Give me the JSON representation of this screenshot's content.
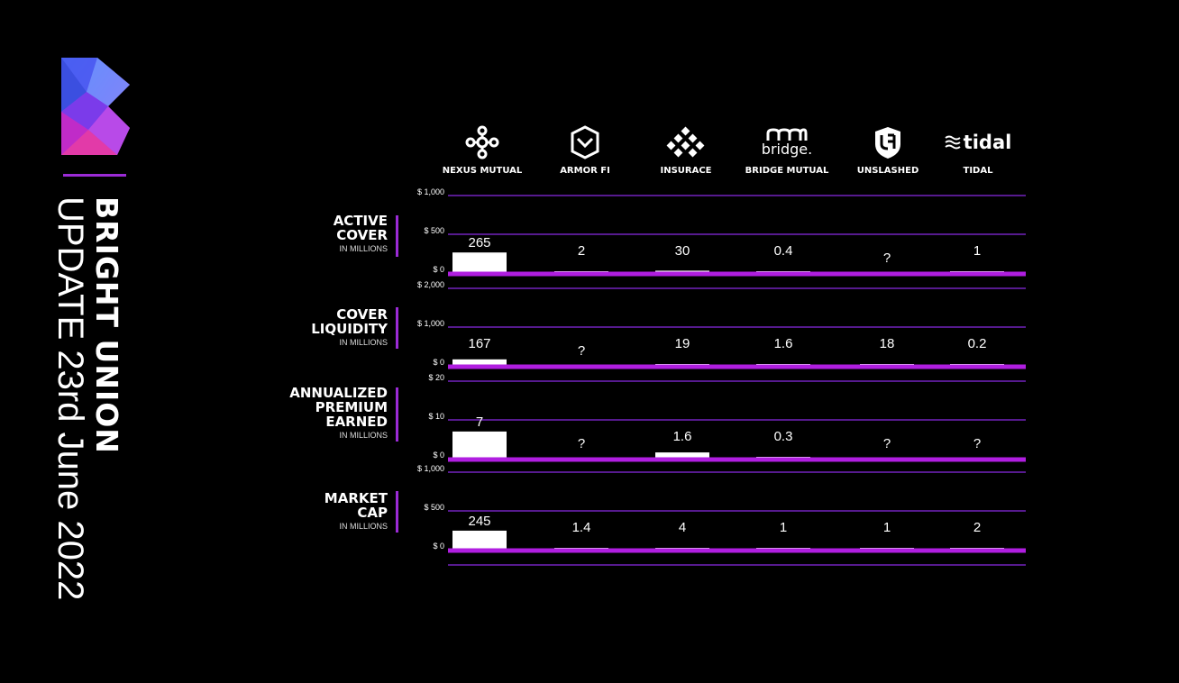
{
  "brand": {
    "name": "BRIGHT UNION",
    "subtitle": "UPDATE 23rd June 2022",
    "logo_icon": "bright-union-logo",
    "colors": {
      "accent": "#9b2bd6",
      "gridline": "#8a2be2",
      "baseline": "#b01ee0",
      "bar": "#ffffff",
      "background": "#000000"
    }
  },
  "companies": [
    {
      "name": "NEXUS MUTUAL",
      "icon": "nexus-mutual-icon"
    },
    {
      "name": "ARMOR FI",
      "icon": "armor-fi-icon"
    },
    {
      "name": "INSURACE",
      "icon": "insurace-icon"
    },
    {
      "name": "BRIDGE MUTUAL",
      "icon": "bridge-mutual-icon",
      "logo_text": "bridge."
    },
    {
      "name": "UNSLASHED",
      "icon": "unslashed-icon"
    },
    {
      "name": "TIDAL",
      "icon": "tidal-icon",
      "logo_text": "tidal"
    }
  ],
  "chart_data": [
    {
      "type": "bar",
      "title": "ACTIVE COVER",
      "unit": "IN MILLIONS",
      "categories": [
        "NEXUS MUTUAL",
        "ARMOR FI",
        "INSURACE",
        "BRIDGE MUTUAL",
        "UNSLASHED",
        "TIDAL"
      ],
      "values": [
        265,
        2,
        30,
        0.4,
        null,
        1
      ],
      "labels": [
        "265",
        "2",
        "30",
        "0.4",
        "?",
        "1"
      ],
      "ylim": [
        0,
        1000
      ],
      "ticks": [
        "$ 1,000",
        "$ 500",
        "$ 0"
      ]
    },
    {
      "type": "bar",
      "title": "COVER LIQUIDITY",
      "unit": "IN MILLIONS",
      "categories": [
        "NEXUS MUTUAL",
        "ARMOR FI",
        "INSURACE",
        "BRIDGE MUTUAL",
        "UNSLASHED",
        "TIDAL"
      ],
      "values": [
        167,
        null,
        19,
        1.6,
        18,
        0.2
      ],
      "labels": [
        "167",
        "?",
        "19",
        "1.6",
        "18",
        "0.2"
      ],
      "ylim": [
        0,
        2000
      ],
      "ticks": [
        "$ 2,000",
        "$ 1,000",
        "$ 0"
      ]
    },
    {
      "type": "bar",
      "title": "ANNUALIZED PREMIUM EARNED",
      "unit": "IN MILLIONS",
      "categories": [
        "NEXUS MUTUAL",
        "ARMOR FI",
        "INSURACE",
        "BRIDGE MUTUAL",
        "UNSLASHED",
        "TIDAL"
      ],
      "values": [
        7,
        null,
        1.6,
        0.3,
        null,
        null
      ],
      "labels": [
        "7",
        "?",
        "1.6",
        "0.3",
        "?",
        "?"
      ],
      "ylim": [
        0,
        20
      ],
      "ticks": [
        "$ 20",
        "$ 10",
        "$ 0"
      ]
    },
    {
      "type": "bar",
      "title": "MARKET CAP",
      "unit": "IN MILLIONS",
      "categories": [
        "NEXUS MUTUAL",
        "ARMOR FI",
        "INSURACE",
        "BRIDGE MUTUAL",
        "UNSLASHED",
        "TIDAL"
      ],
      "values": [
        245,
        1.4,
        4,
        1,
        1,
        2
      ],
      "labels": [
        "245",
        "1.4",
        "4",
        "1",
        "1",
        "2"
      ],
      "ylim": [
        0,
        1000
      ],
      "ticks": [
        "$ 1,000",
        "$ 500",
        "$ 0"
      ]
    }
  ]
}
